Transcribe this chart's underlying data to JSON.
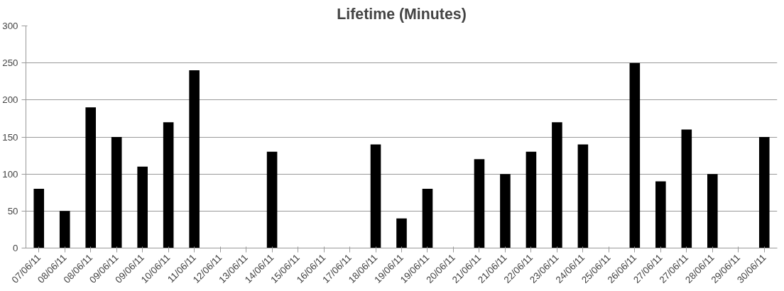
{
  "chart_data": {
    "type": "bar",
    "title": "Lifetime (Minutes)",
    "categories": [
      "07/06/11",
      "08/06/11",
      "08/06/11",
      "09/06/11",
      "09/06/11",
      "10/06/11",
      "11/06/11",
      "12/06/11",
      "13/06/11",
      "14/06/11",
      "15/06/11",
      "16/06/11",
      "17/06/11",
      "18/06/11",
      "19/06/11",
      "19/06/11",
      "20/06/11",
      "21/06/11",
      "21/06/11",
      "22/06/11",
      "23/06/11",
      "24/06/11",
      "25/06/11",
      "26/06/11",
      "27/06/11",
      "27/06/11",
      "28/06/11",
      "29/06/11",
      "30/06/11"
    ],
    "values": [
      80,
      50,
      190,
      150,
      110,
      170,
      240,
      null,
      null,
      130,
      null,
      null,
      null,
      140,
      40,
      80,
      null,
      120,
      100,
      130,
      170,
      140,
      null,
      250,
      90,
      160,
      100,
      null,
      150
    ],
    "color": "#000000",
    "ylim": [
      0,
      300
    ],
    "yticks": [
      0,
      50,
      100,
      150,
      200,
      250,
      300
    ],
    "grid": "y"
  }
}
